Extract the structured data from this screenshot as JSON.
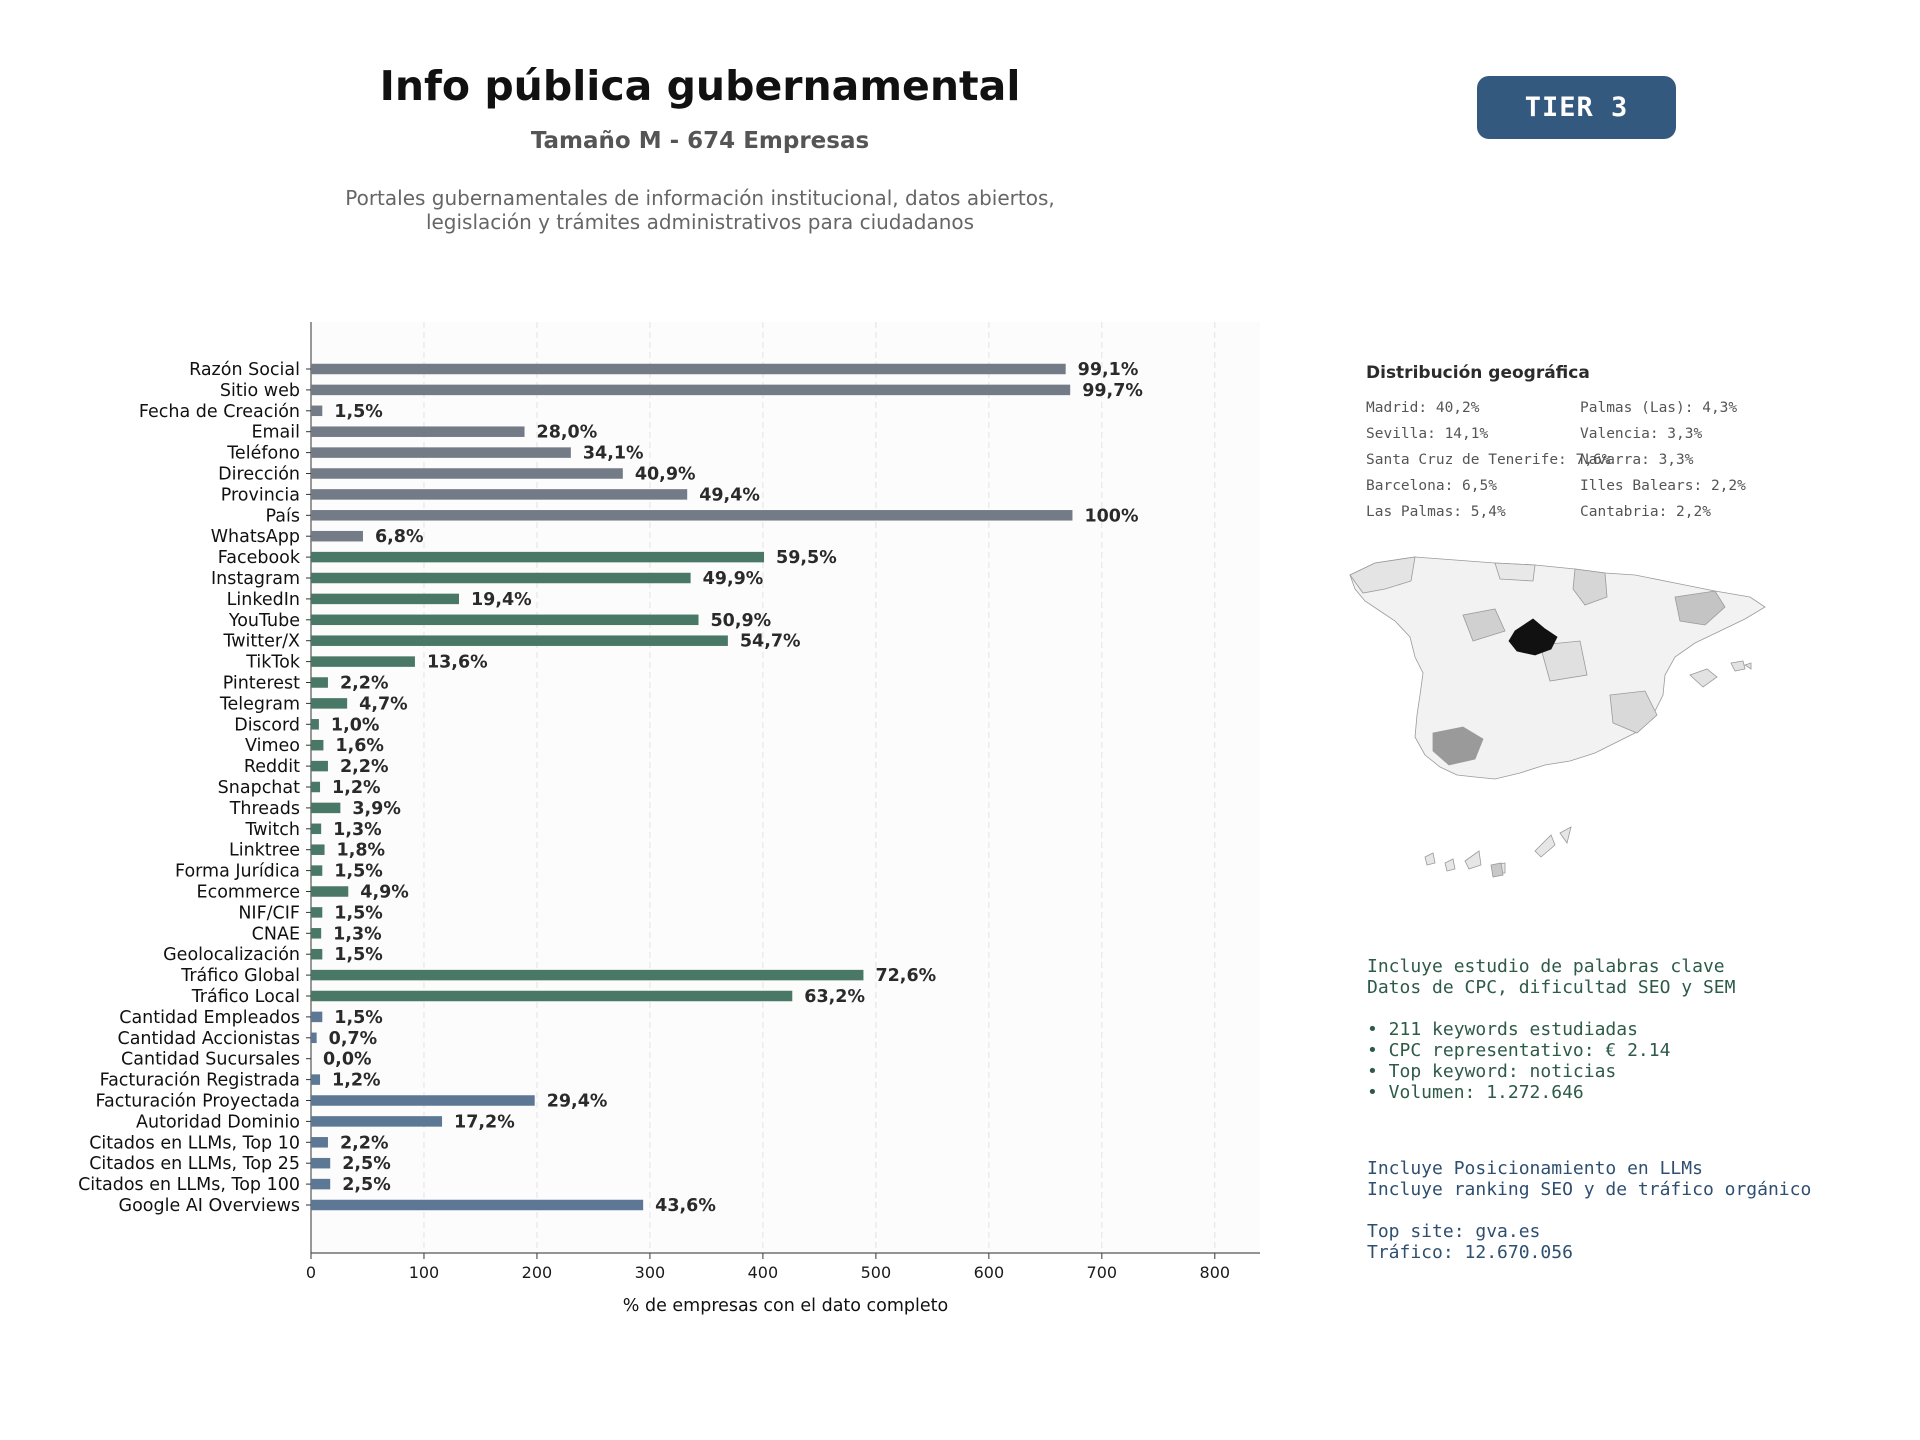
{
  "header": {
    "title": "Info pública gubernamental",
    "subtitle": "Tamaño M - 674 Empresas",
    "description_line1": "Portales gubernamentales de información institucional, datos abiertos,",
    "description_line2": "legislación y trámites administrativos para ciudadanos",
    "tier": "TIER 3"
  },
  "colors": {
    "gray": "#737b86",
    "green": "#4a7866",
    "blue": "#5c7895",
    "tier_bg": "#34597f",
    "highlight_region": "#111111"
  },
  "chart_data": {
    "type": "bar",
    "orientation": "horizontal",
    "xlabel": "% de empresas con el dato completo",
    "xlim": [
      0,
      840
    ],
    "xticks": [
      0,
      100,
      200,
      300,
      400,
      500,
      600,
      700,
      800
    ],
    "grid": "vertical dashed",
    "categories": [
      "Razón Social",
      "Sitio web",
      "Fecha de Creación",
      "Email",
      "Teléfono",
      "Dirección",
      "Provincia",
      "País",
      "WhatsApp",
      "Facebook",
      "Instagram",
      "LinkedIn",
      "YouTube",
      "Twitter/X",
      "TikTok",
      "Pinterest",
      "Telegram",
      "Discord",
      "Vimeo",
      "Reddit",
      "Snapchat",
      "Threads",
      "Twitch",
      "Linktree",
      "Forma Jurídica",
      "Ecommerce",
      "NIF/CIF",
      "CNAE",
      "Geolocalización",
      "Tráfico Global",
      "Tráfico Local",
      "Cantidad Empleados",
      "Cantidad Accionistas",
      "Cantidad Sucursales",
      "Facturación Registrada",
      "Facturación Proyectada",
      "Autoridad Dominio",
      "Citados en LLMs, Top 10",
      "Citados en LLMs, Top 25",
      "Citados en LLMs, Top 100",
      "Google AI Overviews"
    ],
    "values": [
      668,
      672,
      10,
      189,
      230,
      276,
      333,
      674,
      46,
      401,
      336,
      131,
      343,
      369,
      92,
      15,
      32,
      7,
      11,
      15,
      8,
      26,
      9,
      12,
      10,
      33,
      10,
      9,
      10,
      489,
      426,
      10,
      5,
      0,
      8,
      198,
      116,
      15,
      17,
      17,
      294
    ],
    "labels": [
      "99,1%",
      "99,7%",
      "1,5%",
      "28,0%",
      "34,1%",
      "40,9%",
      "49,4%",
      "100%",
      "6,8%",
      "59,5%",
      "49,9%",
      "19,4%",
      "50,9%",
      "54,7%",
      "13,6%",
      "2,2%",
      "4,7%",
      "1,0%",
      "1,6%",
      "2,2%",
      "1,2%",
      "3,9%",
      "1,3%",
      "1,8%",
      "1,5%",
      "4,9%",
      "1,5%",
      "1,3%",
      "1,5%",
      "72,6%",
      "63,2%",
      "1,5%",
      "0,7%",
      "0,0%",
      "1,2%",
      "29,4%",
      "17,2%",
      "2,2%",
      "2,5%",
      "2,5%",
      "43,6%"
    ],
    "groups": [
      "gray",
      "gray",
      "gray",
      "gray",
      "gray",
      "gray",
      "gray",
      "gray",
      "gray",
      "green",
      "green",
      "green",
      "green",
      "green",
      "green",
      "green",
      "green",
      "green",
      "green",
      "green",
      "green",
      "green",
      "green",
      "green",
      "green",
      "green",
      "green",
      "green",
      "green",
      "green",
      "green",
      "blue",
      "blue",
      "blue",
      "blue",
      "blue",
      "blue",
      "blue",
      "blue",
      "blue",
      "blue"
    ]
  },
  "geo": {
    "title": "Distribución geográfica",
    "items": [
      "Madrid: 40,2%",
      "Sevilla: 14,1%",
      "Santa Cruz de Tenerife: 7,6%",
      "Barcelona: 6,5%",
      "Las Palmas: 5,4%",
      "Palmas (Las): 4,3%",
      "Valencia: 3,3%",
      "Navarra: 3,3%",
      "Illes Balears: 2,2%",
      "Cantabria: 2,2%"
    ]
  },
  "keywords": {
    "line1": "Incluye estudio de palabras clave",
    "line2": "Datos de CPC, dificultad SEO y SEM",
    "bullet1": "• 211 keywords estudiadas",
    "bullet2": "• CPC representativo: € 2.14",
    "bullet3": "• Top keyword: noticias",
    "bullet4": "• Volumen: 1.272.646"
  },
  "llm": {
    "line1": "Incluye Posicionamiento en LLMs",
    "line2": "Incluye ranking SEO y de tráfico orgánico",
    "top_site": "Top site: gva.es",
    "traffic": "Tráfico: 12.670.056"
  }
}
